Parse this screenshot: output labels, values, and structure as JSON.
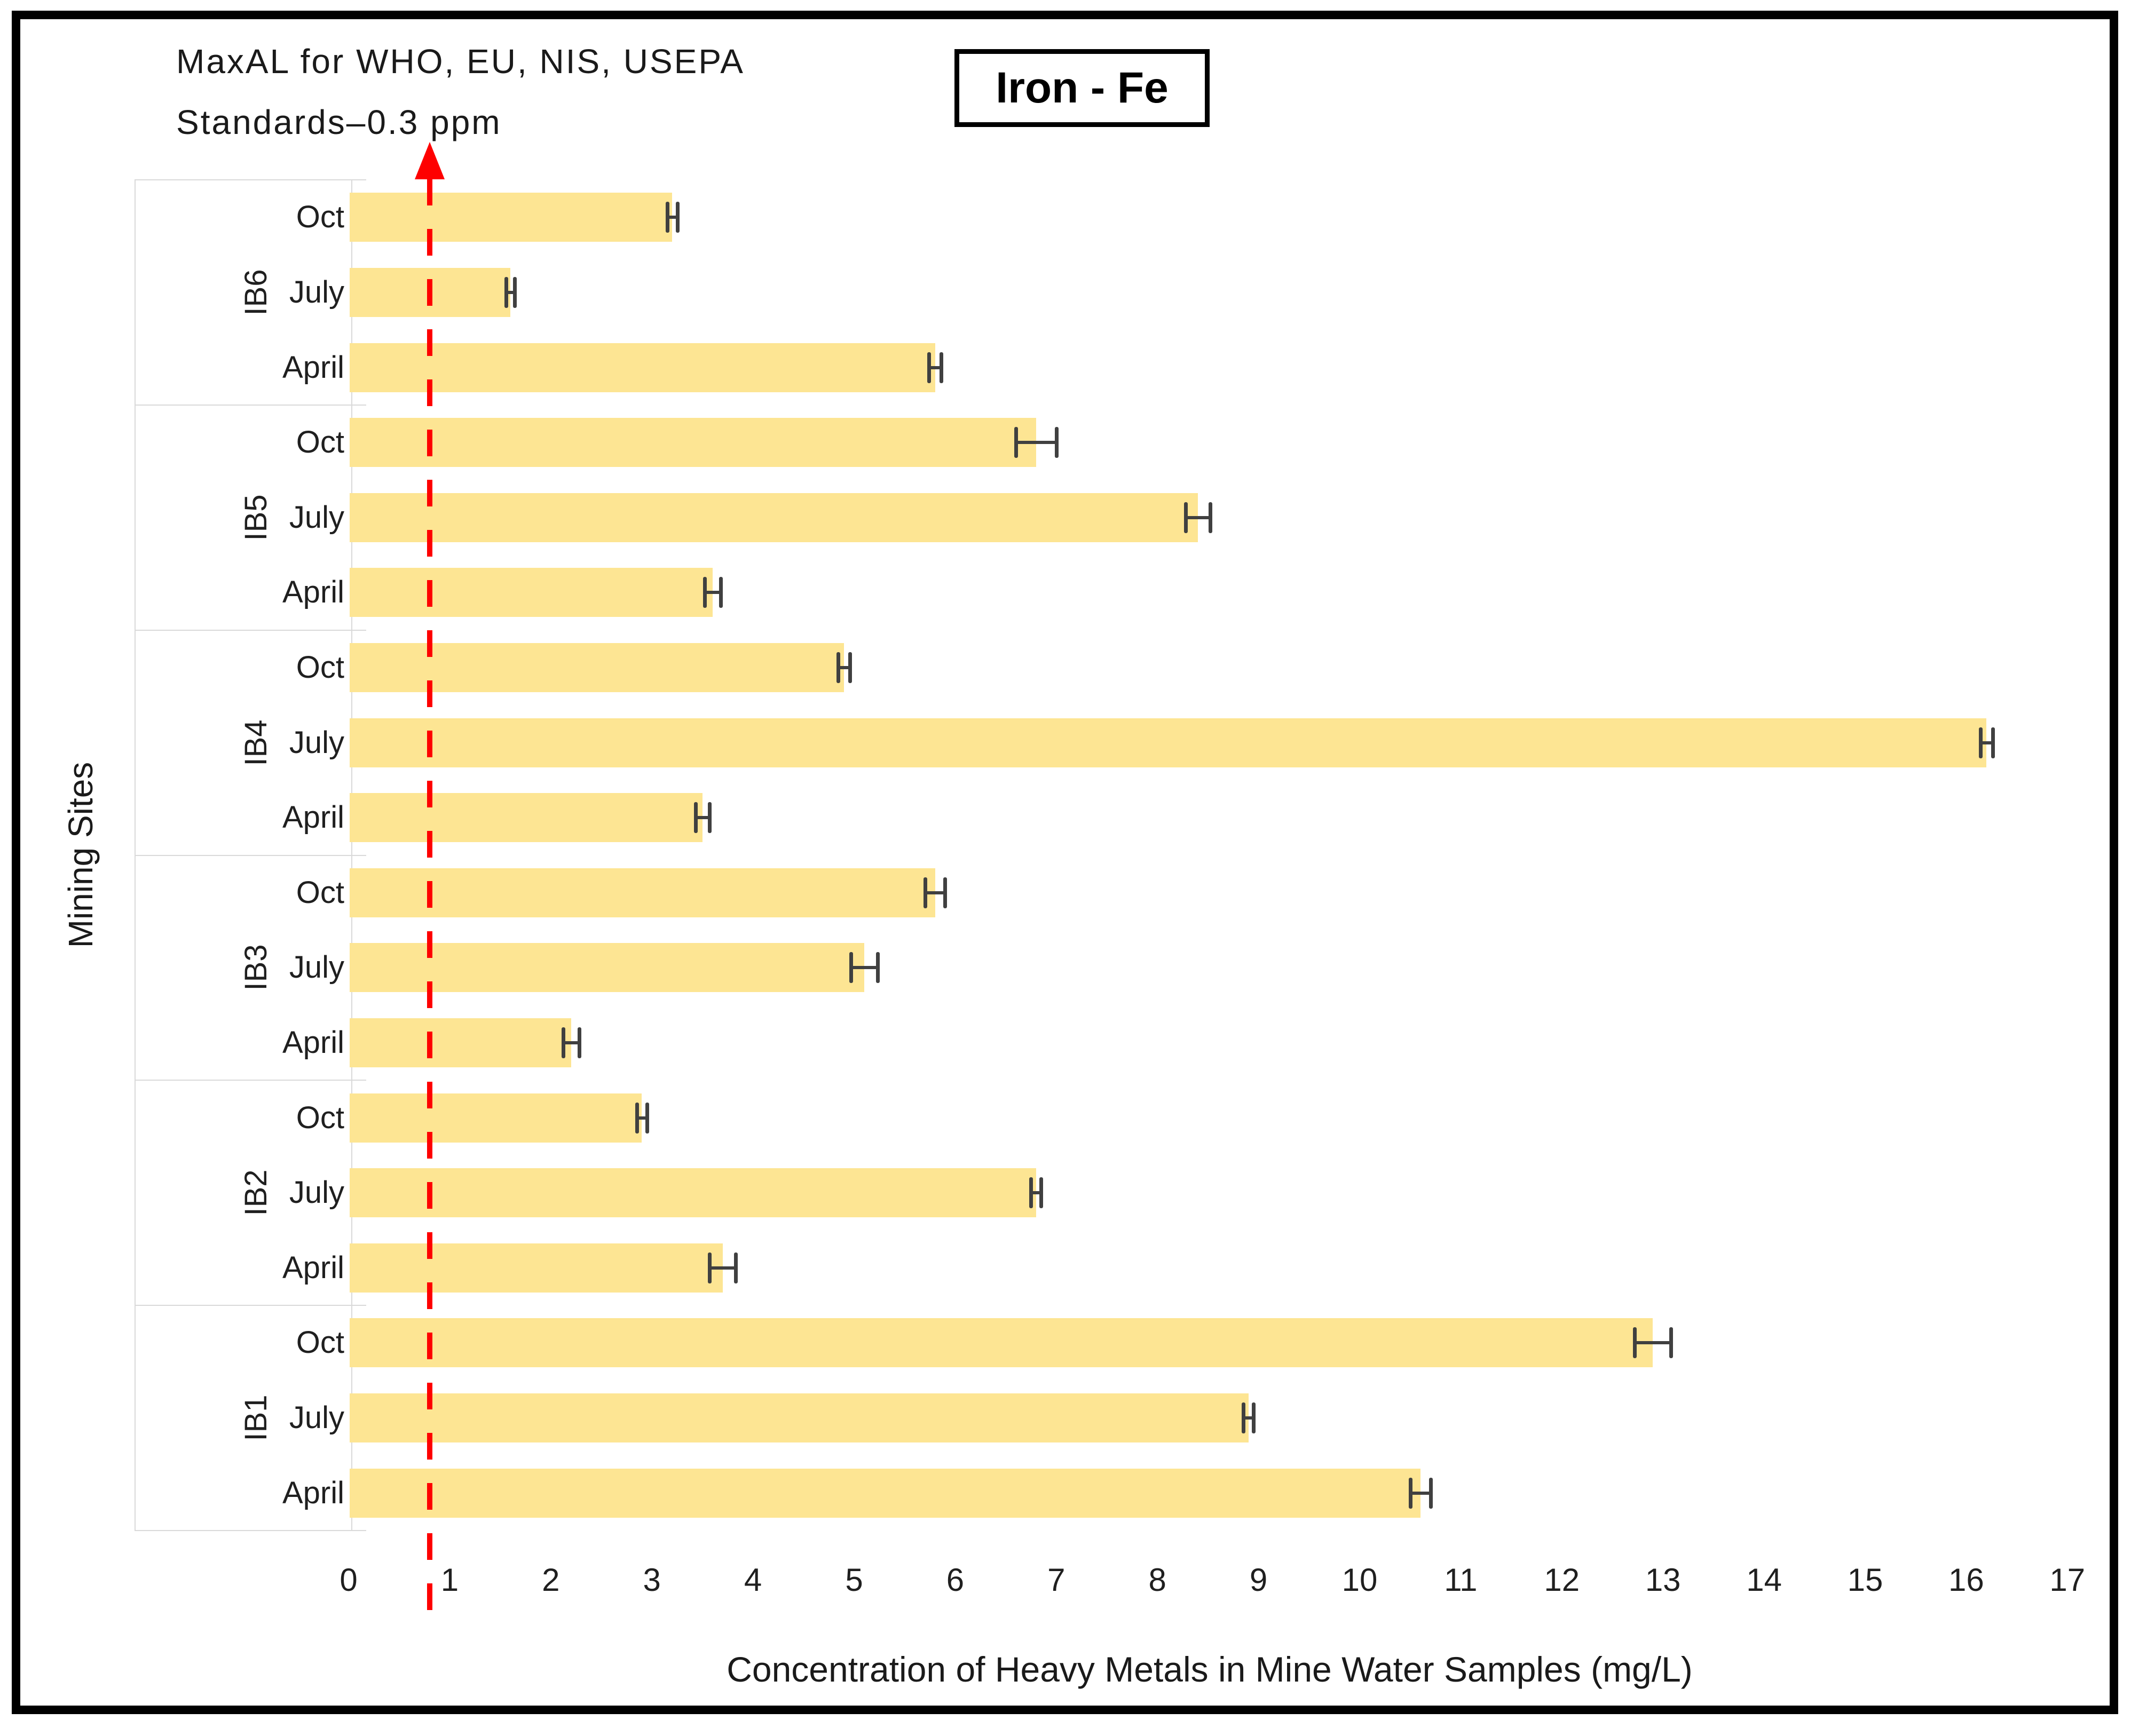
{
  "header": {
    "annotation_line1": "MaxAL for WHO, EU, NIS, USEPA",
    "annotation_line2": "Standards–0.3 ppm",
    "title": "Iron - Fe"
  },
  "chart_data": {
    "type": "bar",
    "orientation": "horizontal",
    "title": "Iron - Fe",
    "xlabel": "Concentration of Heavy Metals in Mine Water Samples (mg/L)",
    "ylabel": "Mining Sites",
    "xlim": [
      0,
      17
    ],
    "x_ticks": [
      "0",
      "1",
      "2",
      "3",
      "4",
      "5",
      "6",
      "7",
      "8",
      "9",
      "10",
      "11",
      "12",
      "13",
      "14",
      "15",
      "16",
      "17"
    ],
    "grid": "off",
    "bar_color": "#FDE593",
    "error_color": "#404040",
    "reference_line": {
      "label": "MaxAL for WHO, EU, NIS, USEPA Standards–0.3 ppm",
      "value_ppm": 0.3,
      "display_position": 0.8,
      "color": "#FE0000",
      "style": "dashed-vertical-with-up-arrow"
    },
    "groups": [
      {
        "site": "IB6",
        "rows": [
          {
            "month": "Oct",
            "value": 3.2,
            "error": 0.05
          },
          {
            "month": "July",
            "value": 1.6,
            "error": 0.04
          },
          {
            "month": "April",
            "value": 5.8,
            "error": 0.06
          }
        ]
      },
      {
        "site": "IB5",
        "rows": [
          {
            "month": "Oct",
            "value": 6.8,
            "error": 0.2
          },
          {
            "month": "July",
            "value": 8.4,
            "error": 0.12
          },
          {
            "month": "April",
            "value": 3.6,
            "error": 0.08
          }
        ]
      },
      {
        "site": "IB4",
        "rows": [
          {
            "month": "Oct",
            "value": 4.9,
            "error": 0.06
          },
          {
            "month": "July",
            "value": 16.2,
            "error": 0.06
          },
          {
            "month": "April",
            "value": 3.5,
            "error": 0.07
          }
        ]
      },
      {
        "site": "IB3",
        "rows": [
          {
            "month": "Oct",
            "value": 5.8,
            "error": 0.1
          },
          {
            "month": "July",
            "value": 5.1,
            "error": 0.13
          },
          {
            "month": "April",
            "value": 2.2,
            "error": 0.08
          }
        ]
      },
      {
        "site": "IB2",
        "rows": [
          {
            "month": "Oct",
            "value": 2.9,
            "error": 0.05
          },
          {
            "month": "July",
            "value": 6.8,
            "error": 0.05
          },
          {
            "month": "April",
            "value": 3.7,
            "error": 0.13
          }
        ]
      },
      {
        "site": "IB1",
        "rows": [
          {
            "month": "Oct",
            "value": 12.9,
            "error": 0.18
          },
          {
            "month": "July",
            "value": 8.9,
            "error": 0.05
          },
          {
            "month": "April",
            "value": 10.6,
            "error": 0.1
          }
        ]
      }
    ]
  }
}
